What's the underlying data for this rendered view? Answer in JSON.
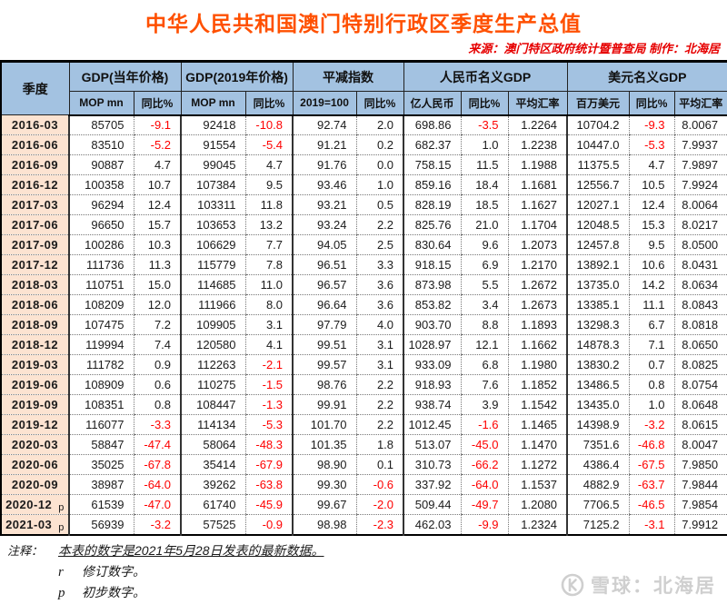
{
  "title": "中华人民共和国澳门特别行政区季度生产总值",
  "source_line": "来源：澳门特区政府统计暨普查局  制作：北海居",
  "colors": {
    "title": "#FF5000",
    "source": "#E60000",
    "header_bg": "#A3C2E1",
    "quarter_bg": "#FCE3D1",
    "negative": "#FE0000"
  },
  "table": {
    "col1_header": "季度",
    "groups": [
      {
        "label": "GDP(当年价格)",
        "sub": [
          "MOP mn",
          "同比%"
        ]
      },
      {
        "label": "GDP(2019年价格)",
        "sub": [
          "MOP mn",
          "同比%"
        ]
      },
      {
        "label": "平减指数",
        "sub": [
          "2019=100",
          "同比%"
        ]
      },
      {
        "label": "人民币名义GDP",
        "sub": [
          "亿人民币",
          "同比%",
          "平均汇率"
        ]
      },
      {
        "label": "美元名义GDP",
        "sub": [
          "百万美元",
          "同比%",
          "平均汇率"
        ]
      }
    ],
    "rows": [
      {
        "quarter": "2016-03",
        "flag": "",
        "values": [
          "85705",
          "-9.1",
          "92418",
          "-10.8",
          "92.74",
          "2.0",
          "698.86",
          "-3.5",
          "1.2264",
          "10704.2",
          "-9.3",
          "8.0067"
        ]
      },
      {
        "quarter": "2016-06",
        "flag": "",
        "values": [
          "83510",
          "-5.2",
          "91554",
          "-5.4",
          "91.21",
          "0.2",
          "682.37",
          "1.0",
          "1.2238",
          "10447.0",
          "-5.3",
          "7.9937"
        ]
      },
      {
        "quarter": "2016-09",
        "flag": "",
        "values": [
          "90887",
          "4.7",
          "99045",
          "4.7",
          "91.76",
          "0.0",
          "758.15",
          "11.5",
          "1.1988",
          "11375.5",
          "4.7",
          "7.9897"
        ]
      },
      {
        "quarter": "2016-12",
        "flag": "",
        "values": [
          "100358",
          "10.7",
          "107384",
          "9.5",
          "93.46",
          "1.0",
          "859.16",
          "18.4",
          "1.1681",
          "12556.7",
          "10.5",
          "7.9924"
        ]
      },
      {
        "quarter": "2017-03",
        "flag": "",
        "values": [
          "96294",
          "12.4",
          "103311",
          "11.8",
          "93.21",
          "0.5",
          "828.19",
          "18.5",
          "1.1627",
          "12027.1",
          "12.4",
          "8.0064"
        ]
      },
      {
        "quarter": "2017-06",
        "flag": "",
        "values": [
          "96650",
          "15.7",
          "103653",
          "13.2",
          "93.24",
          "2.2",
          "825.76",
          "21.0",
          "1.1704",
          "12048.5",
          "15.3",
          "8.0217"
        ]
      },
      {
        "quarter": "2017-09",
        "flag": "",
        "values": [
          "100286",
          "10.3",
          "106629",
          "7.7",
          "94.05",
          "2.5",
          "830.64",
          "9.6",
          "1.2073",
          "12457.8",
          "9.5",
          "8.0500"
        ]
      },
      {
        "quarter": "2017-12",
        "flag": "",
        "values": [
          "111736",
          "11.3",
          "115779",
          "7.8",
          "96.51",
          "3.3",
          "918.15",
          "6.9",
          "1.2170",
          "13892.1",
          "10.6",
          "8.0431"
        ]
      },
      {
        "quarter": "2018-03",
        "flag": "",
        "values": [
          "110751",
          "15.0",
          "114685",
          "11.0",
          "96.57",
          "3.6",
          "873.98",
          "5.5",
          "1.2672",
          "13735.0",
          "14.2",
          "8.0634"
        ]
      },
      {
        "quarter": "2018-06",
        "flag": "",
        "values": [
          "108209",
          "12.0",
          "111966",
          "8.0",
          "96.64",
          "3.6",
          "853.82",
          "3.4",
          "1.2673",
          "13385.1",
          "11.1",
          "8.0843"
        ]
      },
      {
        "quarter": "2018-09",
        "flag": "",
        "values": [
          "107475",
          "7.2",
          "109905",
          "3.1",
          "97.79",
          "4.0",
          "903.70",
          "8.8",
          "1.1893",
          "13298.3",
          "6.7",
          "8.0818"
        ]
      },
      {
        "quarter": "2018-12",
        "flag": "",
        "values": [
          "119994",
          "7.4",
          "120580",
          "4.1",
          "99.51",
          "3.1",
          "1028.97",
          "12.1",
          "1.1662",
          "14878.3",
          "7.1",
          "8.0650"
        ]
      },
      {
        "quarter": "2019-03",
        "flag": "",
        "values": [
          "111782",
          "0.9",
          "112263",
          "-2.1",
          "99.57",
          "3.1",
          "933.09",
          "6.8",
          "1.1980",
          "13830.2",
          "0.7",
          "8.0825"
        ]
      },
      {
        "quarter": "2019-06",
        "flag": "",
        "values": [
          "108909",
          "0.6",
          "110275",
          "-1.5",
          "98.76",
          "2.2",
          "918.93",
          "7.6",
          "1.1852",
          "13486.5",
          "0.8",
          "8.0754"
        ]
      },
      {
        "quarter": "2019-09",
        "flag": "",
        "values": [
          "108351",
          "0.8",
          "108447",
          "-1.3",
          "99.91",
          "2.2",
          "938.74",
          "3.9",
          "1.1542",
          "13435.0",
          "1.0",
          "8.0648"
        ]
      },
      {
        "quarter": "2019-12",
        "flag": "",
        "values": [
          "116077",
          "-3.3",
          "114134",
          "-5.3",
          "101.70",
          "2.2",
          "1012.45",
          "-1.6",
          "1.1465",
          "14398.9",
          "-3.2",
          "8.0615"
        ]
      },
      {
        "quarter": "2020-03",
        "flag": "",
        "values": [
          "58847",
          "-47.4",
          "58064",
          "-48.3",
          "101.35",
          "1.8",
          "513.07",
          "-45.0",
          "1.1470",
          "7351.6",
          "-46.8",
          "8.0047"
        ]
      },
      {
        "quarter": "2020-06",
        "flag": "",
        "values": [
          "35025",
          "-67.8",
          "35414",
          "-67.9",
          "98.90",
          "0.1",
          "310.73",
          "-66.2",
          "1.1272",
          "4386.4",
          "-67.5",
          "7.9850"
        ]
      },
      {
        "quarter": "2020-09",
        "flag": "",
        "values": [
          "38987",
          "-64.0",
          "39262",
          "-63.8",
          "99.30",
          "-0.6",
          "337.92",
          "-64.0",
          "1.1537",
          "4882.9",
          "-63.7",
          "7.9844"
        ]
      },
      {
        "quarter": "2020-12",
        "flag": "p",
        "values": [
          "61539",
          "-47.0",
          "61740",
          "-45.9",
          "99.67",
          "-2.0",
          "509.44",
          "-49.7",
          "1.2080",
          "7706.5",
          "-46.5",
          "7.9854"
        ]
      },
      {
        "quarter": "2021-03",
        "flag": "p",
        "values": [
          "56939",
          "-3.2",
          "57525",
          "-0.9",
          "98.98",
          "-2.3",
          "462.03",
          "-9.9",
          "1.2324",
          "7125.2",
          "-3.1",
          "7.9912"
        ]
      }
    ]
  },
  "notes": {
    "label": "注释：",
    "line1": "本表的数字是2021年5月28日发表的最新数据。",
    "r_key": "r",
    "r_text": "修订数字。",
    "p_key": "p",
    "p_text": "初步数字。"
  },
  "watermark": {
    "icon": "xueqiu-logo",
    "text": "雪球：北海居"
  }
}
